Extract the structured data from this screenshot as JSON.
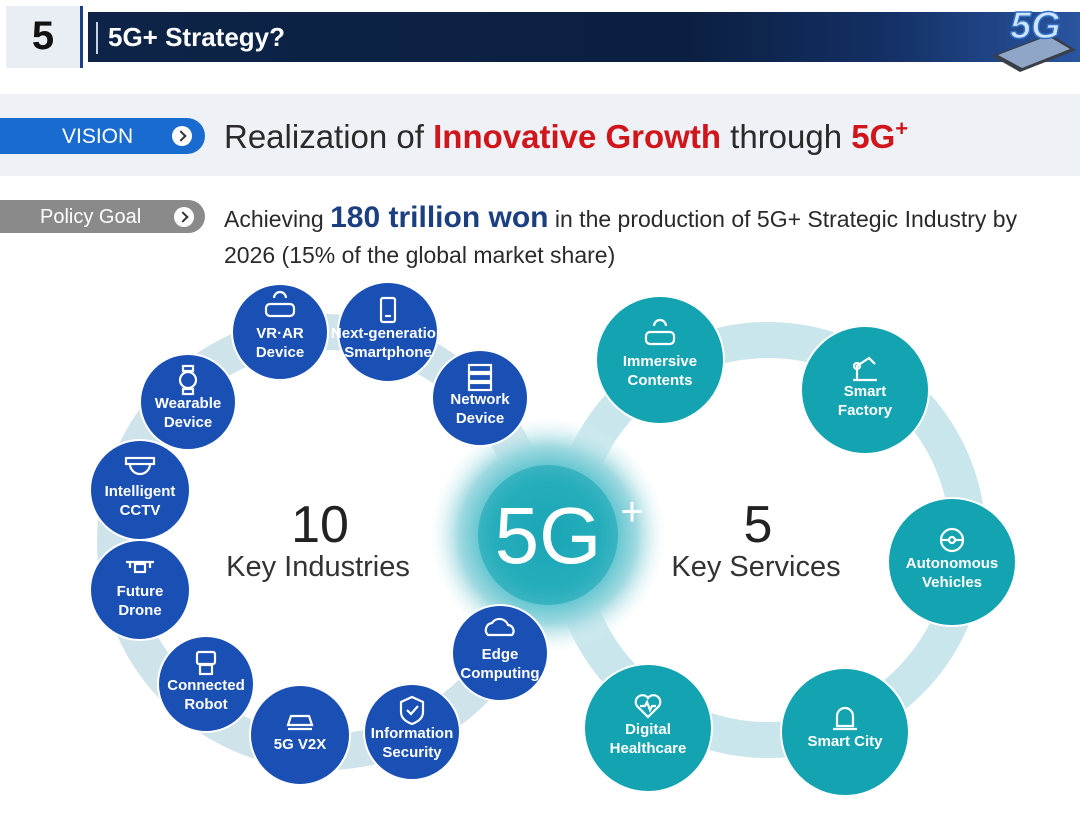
{
  "header": {
    "section_number": "5",
    "title": "5G+ Strategy?",
    "logo_text": "5G"
  },
  "vision": {
    "label": "VISION",
    "text_pre": "Realization of ",
    "text_highlight": "Innovative Growth",
    "text_mid": " through ",
    "text_end": "5G",
    "text_sup": "+"
  },
  "policy": {
    "label": "Policy Goal",
    "text_pre": "Achieving ",
    "text_highlight": "180 trillion won",
    "text_post": " in the production of 5G+ Strategic Industry by 2026 (15% of the global market share)"
  },
  "center": {
    "main": "5G",
    "sup": "+"
  },
  "industries": {
    "count": "10",
    "label": "Key Industries",
    "items": [
      {
        "lines": [
          "VR·AR",
          "Device"
        ],
        "icon": "vr-headset-icon"
      },
      {
        "lines": [
          "Next-generation",
          "Smartphone"
        ],
        "icon": "phone-icon"
      },
      {
        "lines": [
          "Network",
          "Device"
        ],
        "icon": "server-icon"
      },
      {
        "lines": [
          "Wearable",
          "Device"
        ],
        "icon": "watch-icon"
      },
      {
        "lines": [
          "Intelligent",
          "CCTV"
        ],
        "icon": "camera-icon"
      },
      {
        "lines": [
          "Future",
          "Drone"
        ],
        "icon": "drone-icon"
      },
      {
        "lines": [
          "Connected",
          "Robot"
        ],
        "icon": "robot-icon"
      },
      {
        "lines": [
          "5G V2X"
        ],
        "icon": "car-icon"
      },
      {
        "lines": [
          "Information",
          "Security"
        ],
        "icon": "shield-icon"
      },
      {
        "lines": [
          "Edge",
          "Computing"
        ],
        "icon": "cloud-icon"
      }
    ]
  },
  "services": {
    "count": "5",
    "label": "Key Services",
    "items": [
      {
        "lines": [
          "Immersive",
          "Contents"
        ],
        "icon": "vr-headset-icon"
      },
      {
        "lines": [
          "Smart",
          "Factory"
        ],
        "icon": "robot-arm-icon"
      },
      {
        "lines": [
          "Autonomous",
          "Vehicles"
        ],
        "icon": "steering-wheel-icon"
      },
      {
        "lines": [
          "Smart City"
        ],
        "icon": "siren-icon"
      },
      {
        "lines": [
          "Digital",
          "Healthcare"
        ],
        "icon": "heart-pulse-icon"
      }
    ]
  },
  "colors": {
    "header_dark": "#0d2448",
    "vision_blue": "#1a6bd0",
    "highlight_red": "#d0161b",
    "policy_grey": "#8a8a8a",
    "industry_blue": "#1a4fb4",
    "service_teal": "#14a3b0",
    "ring_light": "#cfe6ec"
  }
}
